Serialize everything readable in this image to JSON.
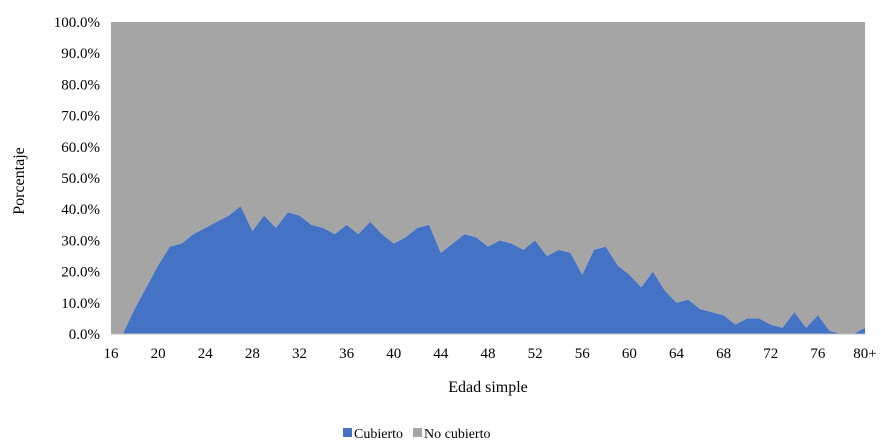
{
  "chart_data": {
    "type": "area",
    "stacked": true,
    "percent": true,
    "xlabel": "Edad simple",
    "ylabel": "Porcentaje",
    "ylim": [
      0,
      100
    ],
    "yticks": [
      "0.0%",
      "10.0%",
      "20.0%",
      "30.0%",
      "40.0%",
      "50.0%",
      "60.0%",
      "70.0%",
      "80.0%",
      "90.0%",
      "100.0%"
    ],
    "x": [
      "16",
      "17",
      "18",
      "19",
      "20",
      "21",
      "22",
      "23",
      "24",
      "25",
      "26",
      "27",
      "28",
      "29",
      "30",
      "31",
      "32",
      "33",
      "34",
      "35",
      "36",
      "37",
      "38",
      "39",
      "40",
      "41",
      "42",
      "43",
      "44",
      "45",
      "46",
      "47",
      "48",
      "49",
      "50",
      "51",
      "52",
      "53",
      "54",
      "55",
      "56",
      "57",
      "58",
      "59",
      "60",
      "61",
      "62",
      "63",
      "64",
      "65",
      "66",
      "67",
      "68",
      "69",
      "70",
      "71",
      "72",
      "73",
      "74",
      "75",
      "76",
      "77",
      "78",
      "79",
      "80+"
    ],
    "xtick_labels": [
      "16",
      "20",
      "24",
      "28",
      "32",
      "36",
      "40",
      "44",
      "48",
      "52",
      "56",
      "60",
      "64",
      "68",
      "72",
      "76",
      "80+"
    ],
    "legend_position": "bottom",
    "series": [
      {
        "name": "Cubierto",
        "color": "#4472C4",
        "values": [
          0,
          0,
          8,
          15,
          22,
          28,
          29,
          32,
          34,
          36,
          38,
          41,
          33,
          38,
          34,
          39,
          38,
          35,
          34,
          32,
          35,
          32,
          36,
          32,
          29,
          31,
          34,
          35,
          26,
          29,
          32,
          31,
          28,
          30,
          29,
          27,
          30,
          25,
          27,
          26,
          19,
          27,
          28,
          22,
          19,
          15,
          20,
          14,
          10,
          11,
          8,
          7,
          6,
          3,
          5,
          5,
          3,
          2,
          7,
          2,
          6,
          1,
          0,
          0,
          2
        ]
      },
      {
        "name": "No cubierto",
        "color": "#A5A5A5",
        "values": [
          100,
          100,
          92,
          85,
          78,
          72,
          71,
          68,
          66,
          64,
          62,
          59,
          67,
          62,
          66,
          61,
          62,
          65,
          66,
          68,
          65,
          68,
          64,
          68,
          71,
          69,
          66,
          65,
          74,
          71,
          68,
          69,
          72,
          70,
          71,
          73,
          70,
          75,
          73,
          74,
          81,
          73,
          72,
          78,
          81,
          85,
          80,
          86,
          90,
          89,
          92,
          93,
          94,
          97,
          95,
          95,
          97,
          98,
          93,
          98,
          94,
          99,
          100,
          100,
          98
        ]
      }
    ]
  }
}
